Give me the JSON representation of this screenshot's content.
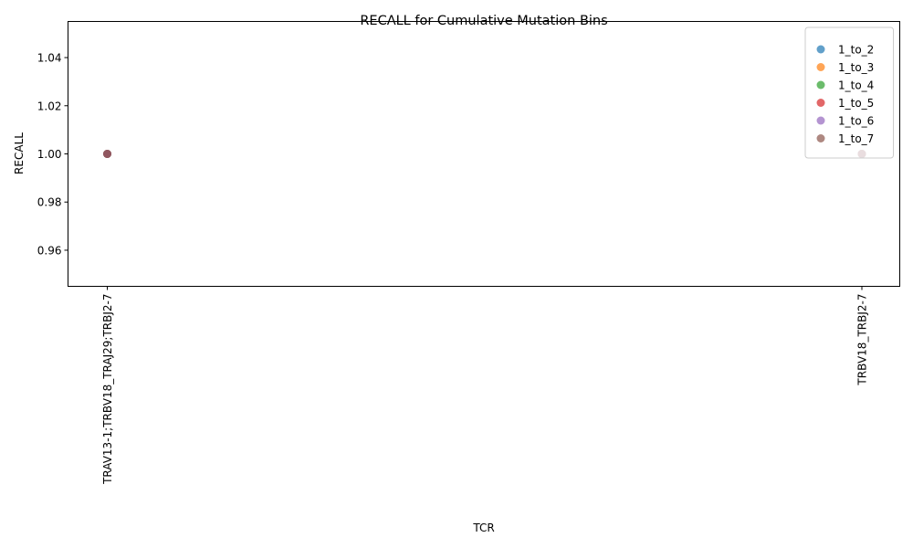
{
  "chart_data": {
    "type": "scatter",
    "title": "RECALL for Cumulative Mutation Bins",
    "xlabel": "TCR",
    "ylabel": "RECALL",
    "categories": [
      "TRAV13-1;TRBV18_TRAJ29;TRBJ2-7",
      "TRBV18_TRBJ2-7"
    ],
    "ylim": [
      0.945,
      1.055
    ],
    "yticks": [
      "0.96",
      "0.98",
      "1.00",
      "1.02",
      "1.04"
    ],
    "ytick_values": [
      0.96,
      0.98,
      1.0,
      1.02,
      1.04
    ],
    "grid": false,
    "legend_position": "top-right",
    "series": [
      {
        "name": "1_to_2",
        "color": "#1f77b4",
        "values": [
          1.0,
          1.0
        ]
      },
      {
        "name": "1_to_3",
        "color": "#ff7f0e",
        "values": [
          1.0,
          1.0
        ]
      },
      {
        "name": "1_to_4",
        "color": "#2ca02c",
        "values": [
          1.0,
          1.0
        ]
      },
      {
        "name": "1_to_5",
        "color": "#d62728",
        "values": [
          1.0,
          1.0
        ]
      },
      {
        "name": "1_to_6",
        "color": "#9467bd",
        "values": [
          1.0,
          1.0
        ]
      },
      {
        "name": "1_to_7",
        "color": "#8c564b",
        "values": [
          1.0,
          1.0
        ]
      }
    ]
  }
}
